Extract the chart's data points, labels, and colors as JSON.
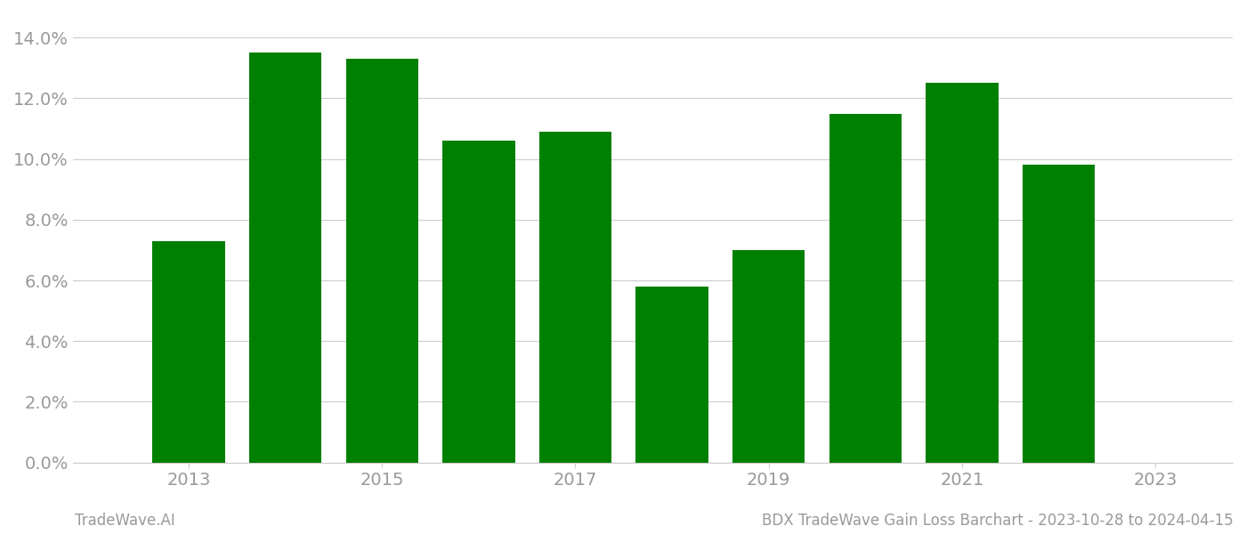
{
  "years": [
    2013,
    2014,
    2015,
    2016,
    2017,
    2018,
    2019,
    2020,
    2021,
    2022
  ],
  "values": [
    0.073,
    0.135,
    0.133,
    0.106,
    0.109,
    0.058,
    0.07,
    0.115,
    0.125,
    0.098
  ],
  "bar_color": "#008000",
  "ylim": [
    0,
    0.148
  ],
  "yticks": [
    0.0,
    0.02,
    0.04,
    0.06,
    0.08,
    0.1,
    0.12,
    0.14
  ],
  "xticks": [
    2013,
    2015,
    2017,
    2019,
    2021,
    2023
  ],
  "xlim": [
    2011.8,
    2023.8
  ],
  "xlabel": "",
  "ylabel": "",
  "title": "",
  "footer_left": "TradeWave.AI",
  "footer_right": "BDX TradeWave Gain Loss Barchart - 2023-10-28 to 2024-04-15",
  "background_color": "#ffffff",
  "grid_color": "#cccccc",
  "tick_label_color": "#999999",
  "footer_color": "#999999",
  "bar_width": 0.75
}
